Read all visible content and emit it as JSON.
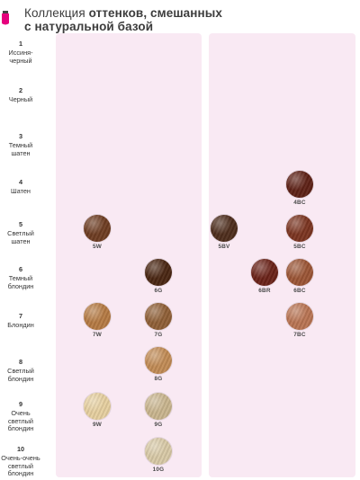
{
  "header": {
    "title_plain": "Коллекция ",
    "title_bold_1": "оттенков, смешанных",
    "title_bold_2": "с натуральной базой"
  },
  "levels": [
    {
      "num": "1",
      "line1": "Иссиня-",
      "line2": "черный",
      "line3": ""
    },
    {
      "num": "2",
      "line1": "Черный",
      "line2": "",
      "line3": ""
    },
    {
      "num": "3",
      "line1": "Темный",
      "line2": "шатен",
      "line3": ""
    },
    {
      "num": "4",
      "line1": "Шатен",
      "line2": "",
      "line3": ""
    },
    {
      "num": "5",
      "line1": "Светлый",
      "line2": "шатен",
      "line3": ""
    },
    {
      "num": "6",
      "line1": "Темный",
      "line2": "блондин",
      "line3": ""
    },
    {
      "num": "7",
      "line1": "Блондин",
      "line2": "",
      "line3": ""
    },
    {
      "num": "8",
      "line1": "Светлый",
      "line2": "блондин",
      "line3": ""
    },
    {
      "num": "9",
      "line1": "Очень",
      "line2": "светлый",
      "line3": "блондин"
    },
    {
      "num": "10",
      "line1": "Очень-очень",
      "line2": "светлый",
      "line3": "блондин"
    }
  ],
  "swatches": [
    {
      "code": "5W",
      "level": "5",
      "panel": "left",
      "column": "1",
      "color": "#6e3d22"
    },
    {
      "code": "7W",
      "level": "7",
      "panel": "left",
      "column": "1",
      "color": "#b57a43"
    },
    {
      "code": "9W",
      "level": "9",
      "panel": "left",
      "column": "1",
      "color": "#e6cf9f"
    },
    {
      "code": "6G",
      "level": "6",
      "panel": "left",
      "column": "2",
      "color": "#4a2612"
    },
    {
      "code": "7G",
      "level": "7",
      "panel": "left",
      "column": "2",
      "color": "#8f5f36"
    },
    {
      "code": "8G",
      "level": "8",
      "panel": "left",
      "column": "2",
      "color": "#c18b55"
    },
    {
      "code": "9G",
      "level": "9",
      "panel": "left",
      "column": "2",
      "color": "#c9b58e"
    },
    {
      "code": "10G",
      "level": "10",
      "panel": "left",
      "column": "2",
      "color": "#d8c9a6"
    },
    {
      "code": "5BV",
      "level": "5",
      "panel": "right",
      "column": "1",
      "color": "#4e2d1c"
    },
    {
      "code": "6BR",
      "level": "6",
      "panel": "right",
      "column": "2",
      "color": "#6a2218"
    },
    {
      "code": "4BC",
      "level": "4",
      "panel": "right",
      "column": "3",
      "color": "#5e2116"
    },
    {
      "code": "5BC",
      "level": "5",
      "panel": "right",
      "column": "3",
      "color": "#7b3420"
    },
    {
      "code": "6BC",
      "level": "6",
      "panel": "right",
      "column": "3",
      "color": "#9b5535"
    },
    {
      "code": "7BC",
      "level": "7",
      "panel": "right",
      "column": "3",
      "color": "#b97453"
    }
  ],
  "colors": {
    "panel_bg": "#f9e9f3",
    "brand_accent": "#e5007d"
  }
}
